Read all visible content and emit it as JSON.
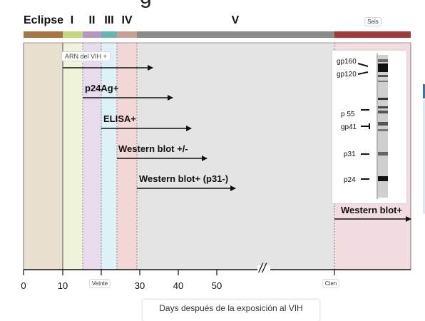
{
  "header": {
    "title": "g"
  },
  "stages": [
    {
      "label": "Eclipse",
      "color": "#a9743f"
    },
    {
      "label": "I",
      "color": "#c2d97a"
    },
    {
      "label": "II",
      "color": "#b597c6"
    },
    {
      "label": "III",
      "color": "#62b6b6"
    },
    {
      "label": "IV",
      "color": "#c7a08f"
    },
    {
      "label": "V",
      "color": "#8a8a8a"
    },
    {
      "label": "Seis",
      "color": "#a33a3a"
    }
  ],
  "regions": {
    "eclipse": "#e8dfcf",
    "stage1": "#eef3d9",
    "stage2": "#e8dcec",
    "stage3": "#dff0f7",
    "stage4": "#f3d6d6",
    "stage5": "#e4e4e4",
    "stage6": "#f2dcdf"
  },
  "markers": [
    {
      "label": "ARN del VIH +"
    },
    {
      "label": "p24Ag+"
    },
    {
      "label": "ELISA+"
    },
    {
      "label": "Western blot +/-"
    },
    {
      "label": "Western blot+ (p31-)"
    },
    {
      "label": "Western blot+"
    }
  ],
  "blot": {
    "labels": [
      "gp160",
      "gp120",
      "p 55",
      "gp41",
      "p31",
      "p24"
    ]
  },
  "axis": {
    "ticks": [
      "0",
      "10",
      "Veinte",
      "30",
      "40",
      "50",
      "Cien"
    ],
    "break_symbol": "//",
    "title": "Days después de la exposición al VIH"
  }
}
